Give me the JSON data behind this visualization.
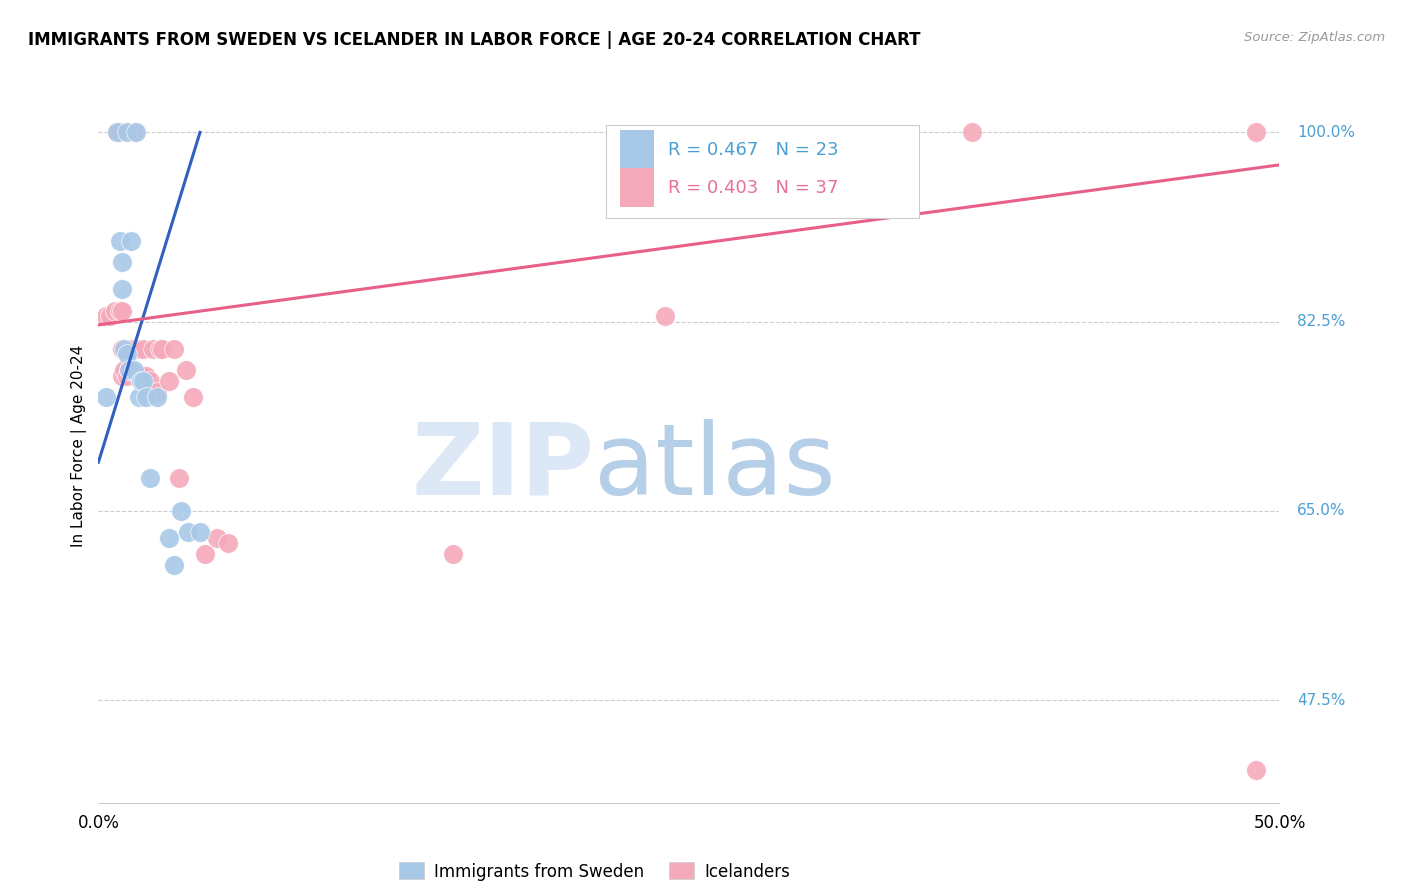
{
  "title": "IMMIGRANTS FROM SWEDEN VS ICELANDER IN LABOR FORCE | AGE 20-24 CORRELATION CHART",
  "source": "Source: ZipAtlas.com",
  "ylabel": "In Labor Force | Age 20-24",
  "xlim": [
    0.0,
    0.5
  ],
  "ylim": [
    0.38,
    1.04
  ],
  "ytick_labels": [
    "47.5%",
    "65.0%",
    "82.5%",
    "100.0%"
  ],
  "ytick_values": [
    0.475,
    0.65,
    0.825,
    1.0
  ],
  "xtick_labels": [
    "0.0%",
    "50.0%"
  ],
  "xtick_values": [
    0.0,
    0.5
  ],
  "sweden_color": "#a8c8e8",
  "iceland_color": "#f5aabb",
  "sweden_R": 0.467,
  "sweden_N": 23,
  "iceland_R": 0.403,
  "iceland_N": 37,
  "legend_text_blue": "#4a9fd4",
  "legend_text_pink": "#e8709a",
  "line_blue": "#3060c0",
  "line_pink": "#e86088",
  "sweden_points_x": [
    0.003,
    0.008,
    0.009,
    0.01,
    0.01,
    0.011,
    0.012,
    0.012,
    0.013,
    0.014,
    0.015,
    0.016,
    0.017,
    0.018,
    0.019,
    0.02,
    0.022,
    0.025,
    0.03,
    0.032,
    0.035,
    0.038,
    0.043
  ],
  "sweden_points_y": [
    0.755,
    1.0,
    0.9,
    0.88,
    0.855,
    0.8,
    1.0,
    0.795,
    0.78,
    0.9,
    0.78,
    1.0,
    0.755,
    0.77,
    0.77,
    0.755,
    0.68,
    0.755,
    0.625,
    0.6,
    0.65,
    0.63,
    0.63
  ],
  "iceland_points_x": [
    0.003,
    0.005,
    0.007,
    0.008,
    0.009,
    0.009,
    0.01,
    0.01,
    0.01,
    0.011,
    0.012,
    0.013,
    0.014,
    0.015,
    0.016,
    0.017,
    0.018,
    0.019,
    0.02,
    0.022,
    0.023,
    0.025,
    0.026,
    0.027,
    0.03,
    0.032,
    0.034,
    0.037,
    0.04,
    0.045,
    0.05,
    0.055,
    0.15,
    0.24,
    0.37,
    0.49,
    0.49
  ],
  "iceland_points_y": [
    0.83,
    0.83,
    0.835,
    1.0,
    1.0,
    0.835,
    0.775,
    0.8,
    0.835,
    0.78,
    0.775,
    0.78,
    0.8,
    1.0,
    0.8,
    0.775,
    0.775,
    0.8,
    0.775,
    0.77,
    0.8,
    0.76,
    0.8,
    0.8,
    0.77,
    0.8,
    0.68,
    0.78,
    0.755,
    0.61,
    0.625,
    0.62,
    0.61,
    0.83,
    1.0,
    1.0,
    0.41
  ],
  "blue_line_x": [
    0.0,
    0.043
  ],
  "blue_line_y": [
    0.695,
    1.0
  ],
  "pink_line_x": [
    0.0,
    0.5
  ],
  "pink_line_y": [
    0.822,
    0.97
  ]
}
